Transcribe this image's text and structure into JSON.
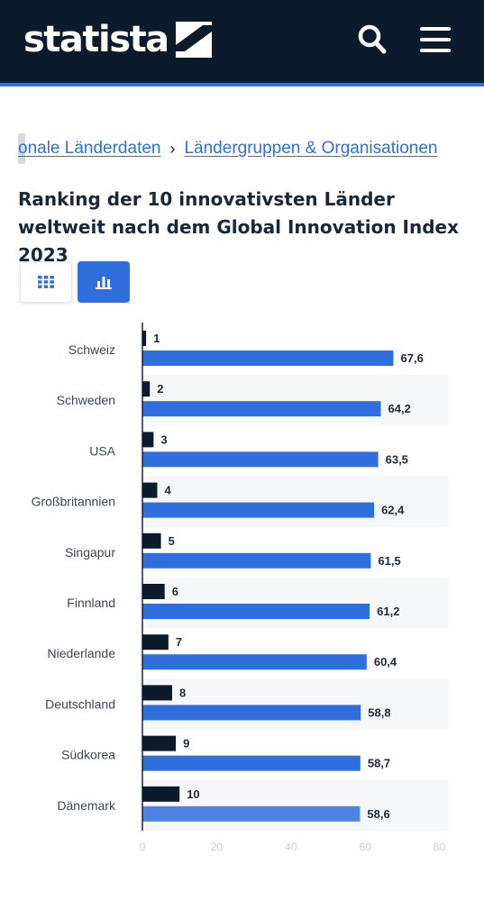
{
  "header": {
    "logo_text": "statista",
    "icons": {
      "search": "search-icon",
      "menu": "hamburger-menu-icon",
      "logo": "statista-logo-mark"
    },
    "colors": {
      "bar_bg": "#0b1b2c",
      "accent": "#2f6fdd"
    }
  },
  "breadcrumb": {
    "items": [
      "onale Länderdaten",
      "Ländergruppen & Organisationen"
    ],
    "separator": "›"
  },
  "chart_title": "Ranking der 10 innovativsten Länder weltweit nach dem Global Innovation Index 2023",
  "view_toggle": {
    "table_icon": "grid-table-icon",
    "chart_icon": "bar-chart-icon",
    "active": "chart"
  },
  "chart_data": {
    "type": "bar",
    "orientation": "horizontal",
    "title": "Ranking der 10 innovativsten Länder weltweit nach dem Global Innovation Index 2023",
    "categories": [
      "Schweiz",
      "Schweden",
      "USA",
      "Großbritannien",
      "Singapur",
      "Finnland",
      "Niederlande",
      "Deutschland",
      "Südkorea",
      "Dänemark"
    ],
    "series": [
      {
        "values": [
          1,
          2,
          3,
          4,
          5,
          6,
          7,
          8,
          9,
          10
        ],
        "color": "#0b1b2c"
      },
      {
        "values": [
          67.6,
          64.2,
          63.5,
          62.4,
          61.5,
          61.2,
          60.4,
          58.8,
          58.7,
          58.6
        ],
        "color": "#2f6fdd"
      }
    ],
    "value_labels": [
      [
        "1",
        "2",
        "3",
        "4",
        "5",
        "6",
        "7",
        "8",
        "9",
        "10"
      ],
      [
        "67,6",
        "64,2",
        "63,5",
        "62,4",
        "61,5",
        "61,2",
        "60,4",
        "58,8",
        "58,7",
        "58,6"
      ]
    ],
    "x_ticks": [
      "0",
      "20",
      "40",
      "60",
      "80"
    ],
    "xlim": [
      0,
      80
    ],
    "grid": "alternating-row-bands",
    "legend": "none"
  }
}
